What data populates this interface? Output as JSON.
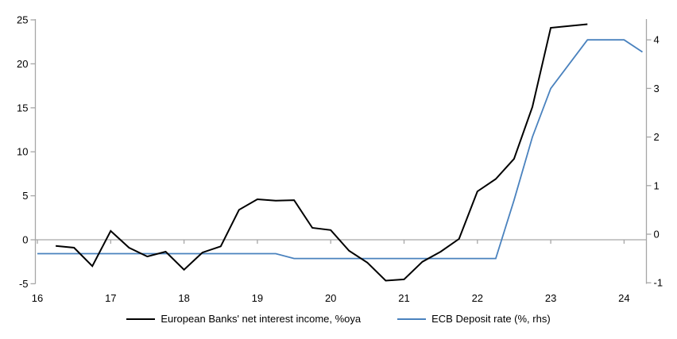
{
  "chart_data": {
    "type": "line",
    "title": "",
    "x_axis": {
      "min": 16,
      "max": 24.3,
      "ticks": [
        16,
        17,
        18,
        19,
        20,
        21,
        22,
        23,
        24
      ]
    },
    "left_axis": {
      "min": -5,
      "max": 25,
      "ticks": [
        25,
        20,
        15,
        10,
        5,
        0,
        -5
      ]
    },
    "right_axis": {
      "min": -1,
      "max": 4.5,
      "ticks": [
        4,
        3,
        2,
        1,
        0,
        -1
      ]
    },
    "grid": "zero-line-only",
    "legend_position": "bottom",
    "series": [
      {
        "name": "European Banks' net interest income, %oya",
        "axis": "left",
        "color": "#000000",
        "x": [
          16.25,
          16.5,
          16.75,
          17,
          17.25,
          17.5,
          17.75,
          18,
          18.25,
          18.5,
          18.75,
          19,
          19.25,
          19.5,
          19.75,
          20,
          20.25,
          20.5,
          20.75,
          21,
          21.25,
          21.5,
          21.75,
          22,
          22.25,
          22.5,
          22.75,
          23,
          23.25,
          23.5
        ],
        "values": [
          -0.7,
          -0.9,
          -3.0,
          1.0,
          -0.9,
          -1.9,
          -1.35,
          -3.4,
          -1.45,
          -0.75,
          3.4,
          4.6,
          4.45,
          4.5,
          1.35,
          1.1,
          -1.25,
          -2.6,
          -4.65,
          -4.5,
          -2.5,
          -1.35,
          0.1,
          5.5,
          6.9,
          9.2,
          15.1,
          24.1,
          24.3,
          24.5
        ]
      },
      {
        "name": "ECB Deposit rate (%, rhs)",
        "axis": "right",
        "color": "#4a82be",
        "x": [
          16,
          16.25,
          16.5,
          16.75,
          17,
          17.25,
          17.5,
          17.75,
          18,
          18.25,
          18.5,
          18.75,
          19,
          19.25,
          19.5,
          19.75,
          20,
          20.25,
          20.5,
          20.75,
          21,
          21.25,
          21.5,
          21.75,
          22,
          22.25,
          22.5,
          22.75,
          23,
          23.25,
          23.5,
          23.75,
          24,
          24.25
        ],
        "values": [
          -0.4,
          -0.4,
          -0.4,
          -0.4,
          -0.4,
          -0.4,
          -0.4,
          -0.4,
          -0.4,
          -0.4,
          -0.4,
          -0.4,
          -0.4,
          -0.4,
          -0.5,
          -0.5,
          -0.5,
          -0.5,
          -0.5,
          -0.5,
          -0.5,
          -0.5,
          -0.5,
          -0.5,
          -0.5,
          -0.5,
          0.7,
          2.0,
          3.0,
          3.5,
          4.0,
          4.0,
          4.0,
          3.75
        ]
      }
    ]
  },
  "colors": {
    "axis": "#a6a6a6",
    "text": "#000000",
    "background": "#ffffff"
  }
}
